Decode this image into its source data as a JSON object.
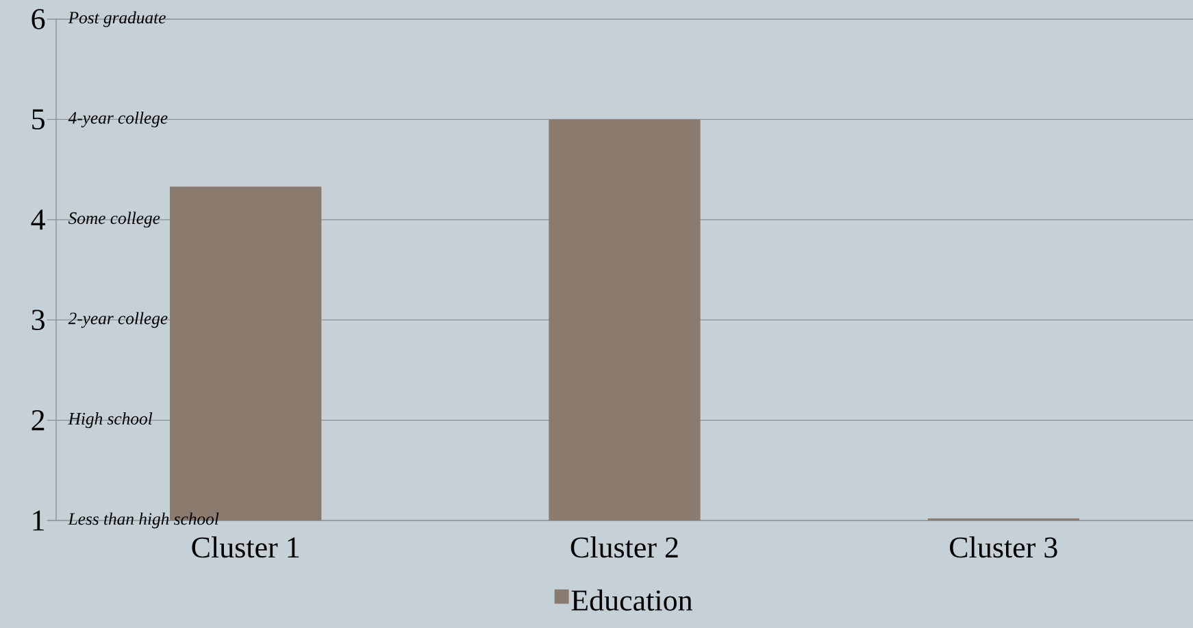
{
  "chart_data": {
    "type": "bar",
    "categories": [
      "Cluster 1",
      "Cluster 2",
      "Cluster 3"
    ],
    "series": [
      {
        "name": "Education",
        "color": "#8b7b6f",
        "values": [
          4.33,
          5,
          1.02
        ]
      }
    ],
    "ylim": [
      1,
      6
    ],
    "yticks": [
      1,
      2,
      3,
      4,
      5,
      6
    ],
    "annotations": [
      "Less than high school",
      "High school",
      "2-year college",
      "Some college",
      "4-year college",
      "Post graduate"
    ],
    "grid": "y",
    "legend": "bottom"
  }
}
